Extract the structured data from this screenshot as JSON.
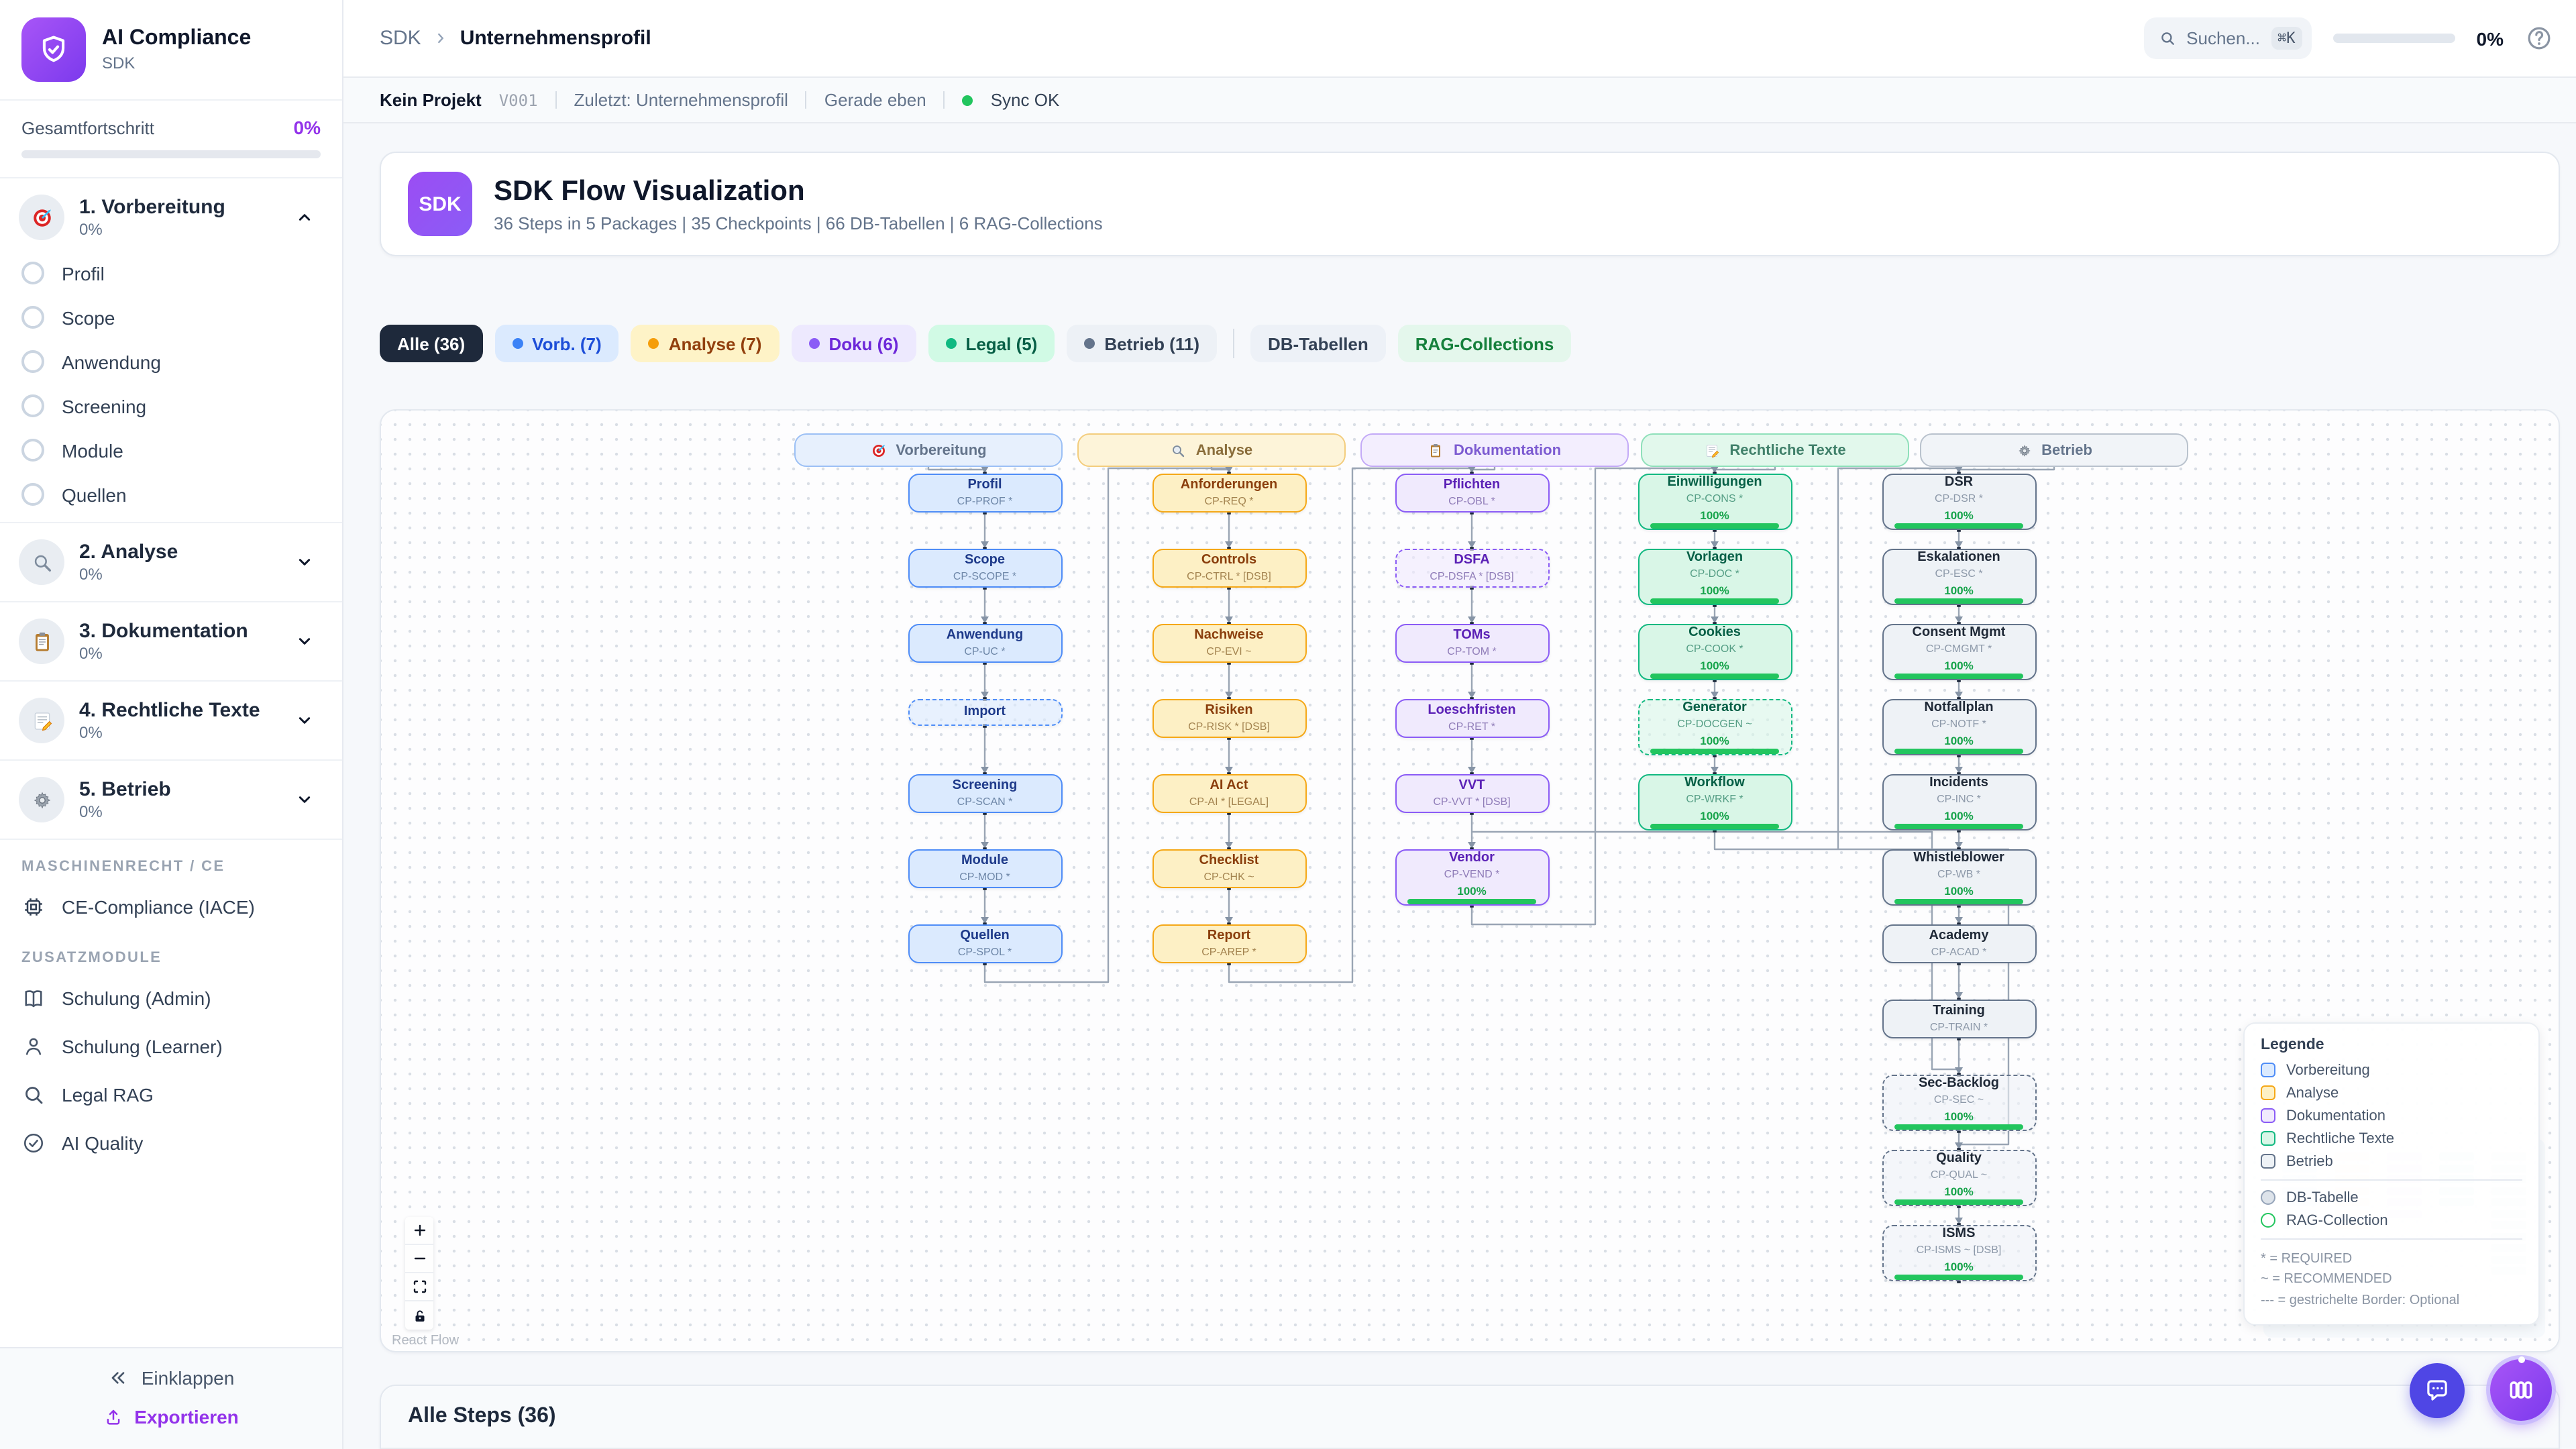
{
  "sidebar": {
    "logo_title": "AI Compliance",
    "logo_subtitle": "SDK",
    "progress_label": "Gesamtfortschritt",
    "progress_value": "0%",
    "sections": [
      {
        "label": "1. Vorbereitung",
        "pct": "0%",
        "icon": "target-icon",
        "expanded": true,
        "items": [
          "Profil",
          "Scope",
          "Anwendung",
          "Screening",
          "Module",
          "Quellen"
        ]
      },
      {
        "label": "2. Analyse",
        "pct": "0%",
        "icon": "magnifier-icon",
        "expanded": false,
        "items": []
      },
      {
        "label": "3. Dokumentation",
        "pct": "0%",
        "icon": "clipboard-icon",
        "expanded": false,
        "items": []
      },
      {
        "label": "4. Rechtliche Texte",
        "pct": "0%",
        "icon": "memo-icon",
        "expanded": false,
        "items": []
      },
      {
        "label": "5. Betrieb",
        "pct": "0%",
        "icon": "gear-icon",
        "expanded": false,
        "items": []
      }
    ],
    "group_maschinenrecht": "MASCHINENRECHT / CE",
    "ce_item": {
      "label": "CE-Compliance (IACE)",
      "icon": "chip-icon"
    },
    "group_zusatz": "ZUSATZMODULE",
    "zusatz_items": [
      {
        "label": "Schulung (Admin)",
        "icon": "book-icon"
      },
      {
        "label": "Schulung (Learner)",
        "icon": "person-icon"
      },
      {
        "label": "Legal RAG",
        "icon": "search-icon"
      },
      {
        "label": "AI Quality",
        "icon": "check-circle-icon"
      }
    ],
    "collapse_label": "Einklappen",
    "export_label": "Exportieren"
  },
  "header": {
    "breadcrumb": {
      "root": "SDK",
      "current": "Unternehmensprofil"
    },
    "search_placeholder": "Suchen...",
    "search_shortcut": "⌘K",
    "progress_value": "0%"
  },
  "statusbar": {
    "project": "Kein Projekt",
    "version": "V001",
    "last": "Zuletzt: Unternehmensprofil",
    "time": "Gerade eben",
    "sync": "Sync OK"
  },
  "hero": {
    "badge": "SDK",
    "title": "SDK Flow Visualization",
    "subtitle": "36 Steps in 5 Packages | 35 Checkpoints | 66 DB-Tabellen | 6 RAG-Collections"
  },
  "filters": [
    {
      "label": "Alle (36)",
      "bg": "#1e293b",
      "color": "#ffffff",
      "dot": null,
      "divider_after": false
    },
    {
      "label": "Vorb. (7)",
      "bg": "#dbeafe",
      "color": "#1d4ed8",
      "dot": "#3b82f6",
      "divider_after": false
    },
    {
      "label": "Analyse (7)",
      "bg": "#fef3c7",
      "color": "#92400e",
      "dot": "#f59e0b",
      "divider_after": false
    },
    {
      "label": "Doku (6)",
      "bg": "#ede9fe",
      "color": "#6d28d9",
      "dot": "#8b5cf6",
      "divider_after": false
    },
    {
      "label": "Legal (5)",
      "bg": "#d1fae5",
      "color": "#065f46",
      "dot": "#10b981",
      "divider_after": false
    },
    {
      "label": "Betrieb (11)",
      "bg": "#edf1f6",
      "color": "#334155",
      "dot": "#64748b",
      "divider_after": true
    },
    {
      "label": "DB-Tabellen",
      "bg": "#edf1f7",
      "color": "#334155",
      "dot": null,
      "divider_after": false
    },
    {
      "label": "RAG-Collections",
      "bg": "#e4f7ec",
      "color": "#16803c",
      "dot": null,
      "divider_after": false
    }
  ],
  "flow": {
    "columns": [
      {
        "id": "vorbereitung",
        "label": "Vorbereitung",
        "icon": "target-icon",
        "palette": {
          "border": "#4f8df7",
          "bg": "#dbeafe",
          "label": "#1e3a8a",
          "code": "#6e87a8",
          "hdr_bg": "#e7f0fd",
          "hdr_border": "#9cc0f5",
          "hdr_text": "#64748b"
        },
        "nodes": [
          {
            "label": "Profil",
            "code": "CP-PROF *",
            "dashed": false,
            "progress": null
          },
          {
            "label": "Scope",
            "code": "CP-SCOPE *",
            "dashed": false,
            "progress": null
          },
          {
            "label": "Anwendung",
            "code": "CP-UC *",
            "dashed": false,
            "progress": null
          },
          {
            "label": "Import",
            "code": null,
            "dashed": true,
            "progress": null
          },
          {
            "label": "Screening",
            "code": "CP-SCAN *",
            "dashed": false,
            "progress": null
          },
          {
            "label": "Module",
            "code": "CP-MOD *",
            "dashed": false,
            "progress": null
          },
          {
            "label": "Quellen",
            "code": "CP-SPOL *",
            "dashed": false,
            "progress": null
          }
        ]
      },
      {
        "id": "analyse",
        "label": "Analyse",
        "icon": "magnifier-icon",
        "palette": {
          "border": "#f5a818",
          "bg": "#fdf0c5",
          "label": "#8a3e0c",
          "code": "#a3834f",
          "hdr_bg": "#fdf4d9",
          "hdr_border": "#f3cd7e",
          "hdr_text": "#8a6d3b"
        },
        "nodes": [
          {
            "label": "Anforderungen",
            "code": "CP-REQ *",
            "dashed": false,
            "progress": null
          },
          {
            "label": "Controls",
            "code": "CP-CTRL * [DSB]",
            "dashed": false,
            "progress": null
          },
          {
            "label": "Nachweise",
            "code": "CP-EVI ~",
            "dashed": false,
            "progress": null
          },
          {
            "label": "Risiken",
            "code": "CP-RISK * [DSB]",
            "dashed": false,
            "progress": null
          },
          {
            "label": "AI Act",
            "code": "CP-AI * [LEGAL]",
            "dashed": false,
            "progress": null
          },
          {
            "label": "Checklist",
            "code": "CP-CHK ~",
            "dashed": false,
            "progress": null
          },
          {
            "label": "Report",
            "code": "CP-AREP *",
            "dashed": false,
            "progress": null
          }
        ]
      },
      {
        "id": "dokumentation",
        "label": "Dokumentation",
        "icon": "clipboard-icon",
        "palette": {
          "border": "#8b5cf6",
          "bg": "#f0eafd",
          "label": "#5b21b6",
          "code": "#8f7cb8",
          "hdr_bg": "#f3eefe",
          "hdr_border": "#c3aaf7",
          "hdr_text": "#7c5bd1"
        },
        "nodes": [
          {
            "label": "Pflichten",
            "code": "CP-OBL *",
            "dashed": false,
            "progress": null
          },
          {
            "label": "DSFA",
            "code": "CP-DSFA * [DSB]",
            "dashed": true,
            "progress": null
          },
          {
            "label": "TOMs",
            "code": "CP-TOM *",
            "dashed": false,
            "progress": null
          },
          {
            "label": "Loeschfristen",
            "code": "CP-RET *",
            "dashed": false,
            "progress": null
          },
          {
            "label": "VVT",
            "code": "CP-VVT * [DSB]",
            "dashed": false,
            "progress": null
          },
          {
            "label": "Vendor",
            "code": "CP-VEND *",
            "dashed": false,
            "progress": "100%"
          }
        ]
      },
      {
        "id": "legal",
        "label": "Rechtliche Texte",
        "icon": "memo-icon",
        "palette": {
          "border": "#12b981",
          "bg": "#d9f6e7",
          "label": "#065f46",
          "code": "#559e85",
          "hdr_bg": "#e2f8ec",
          "hdr_border": "#8fe0ba",
          "hdr_text": "#40806a"
        },
        "nodes": [
          {
            "label": "Einwilligungen",
            "code": "CP-CONS *",
            "dashed": false,
            "progress": "100%"
          },
          {
            "label": "Vorlagen",
            "code": "CP-DOC *",
            "dashed": false,
            "progress": "100%"
          },
          {
            "label": "Cookies",
            "code": "CP-COOK *",
            "dashed": false,
            "progress": "100%"
          },
          {
            "label": "Generator",
            "code": "CP-DOCGEN ~",
            "dashed": true,
            "progress": "100%"
          },
          {
            "label": "Workflow",
            "code": "CP-WRKF *",
            "dashed": false,
            "progress": "100%"
          }
        ]
      },
      {
        "id": "betrieb",
        "label": "Betrieb",
        "icon": "gear-icon",
        "palette": {
          "border": "#64748b",
          "bg": "#eef2f6",
          "label": "#1f2937",
          "code": "#8d99a9",
          "hdr_bg": "#f1f4f8",
          "hdr_border": "#b9c2cd",
          "hdr_text": "#64748b"
        },
        "nodes": [
          {
            "label": "DSR",
            "code": "CP-DSR *",
            "dashed": false,
            "progress": "100%"
          },
          {
            "label": "Eskalationen",
            "code": "CP-ESC *",
            "dashed": false,
            "progress": "100%"
          },
          {
            "label": "Consent Mgmt",
            "code": "CP-CMGMT *",
            "dashed": false,
            "progress": "100%"
          },
          {
            "label": "Notfallplan",
            "code": "CP-NOTF *",
            "dashed": false,
            "progress": "100%"
          },
          {
            "label": "Incidents",
            "code": "CP-INC *",
            "dashed": false,
            "progress": "100%"
          },
          {
            "label": "Whistleblower",
            "code": "CP-WB *",
            "dashed": false,
            "progress": "100%"
          },
          {
            "label": "Academy",
            "code": "CP-ACAD *",
            "dashed": false,
            "progress": null
          },
          {
            "label": "Training",
            "code": "CP-TRAIN *",
            "dashed": false,
            "progress": null
          },
          {
            "label": "Sec-Backlog",
            "code": "CP-SEC ~",
            "dashed": true,
            "progress": "100%"
          },
          {
            "label": "Quality",
            "code": "CP-QUAL ~",
            "dashed": true,
            "progress": "100%"
          },
          {
            "label": "ISMS",
            "code": "CP-ISMS ~ [DSB]",
            "dashed": true,
            "progress": "100%"
          }
        ]
      }
    ],
    "links": [
      {
        "from": "Quellen",
        "to": "Anforderungen"
      },
      {
        "from": "Report",
        "to": "Pflichten"
      },
      {
        "from": "Vendor",
        "to": "Einwilligungen"
      },
      {
        "from": "Workflow",
        "to": "DSR"
      },
      {
        "from": "VVT",
        "to": "Sec-Backlog"
      },
      {
        "from": "Workflow",
        "to": "Quality"
      }
    ]
  },
  "legend": {
    "title": "Legende",
    "groups": [
      {
        "label": "Vorbereitung",
        "border": "#4f8df7",
        "bg": "#dbeafe"
      },
      {
        "label": "Analyse",
        "border": "#f5a818",
        "bg": "#fdf0c5"
      },
      {
        "label": "Dokumentation",
        "border": "#8b5cf6",
        "bg": "#f0eafd"
      },
      {
        "label": "Rechtliche Texte",
        "border": "#12b981",
        "bg": "#d9f6e7"
      },
      {
        "label": "Betrieb",
        "border": "#64748b",
        "bg": "#eef2f6"
      }
    ],
    "shapes": [
      {
        "label": "DB-Tabelle",
        "border": "#94a3b8",
        "bg": "#dde3ea"
      },
      {
        "label": "RAG-Collection",
        "border": "#22c55e",
        "bg": "#ffffff"
      }
    ],
    "notes": [
      "* = REQUIRED",
      "~ = RECOMMENDED",
      "--- = gestrichelte Border: Optional"
    ]
  },
  "flow_attribution": "React Flow",
  "bottom": {
    "title": "Alle Steps (36)"
  }
}
